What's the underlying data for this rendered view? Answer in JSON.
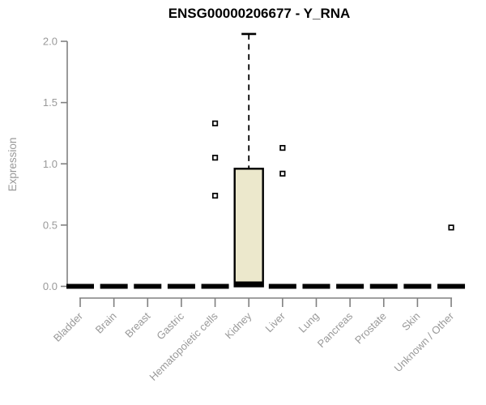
{
  "chart_data": {
    "type": "box",
    "title": "ENSG00000206677 - Y_RNA",
    "xlabel": "",
    "ylabel": "Expression",
    "ylim": [
      0,
      2.1
    ],
    "yticks": [
      0.0,
      0.5,
      1.0,
      1.5,
      2.0
    ],
    "ytick_labels": [
      "0.0",
      "0.5",
      "1.0",
      "1.5",
      "2.0"
    ],
    "grid": "off",
    "legend": "none",
    "categories": [
      "Bladder",
      "Brain",
      "Breast",
      "Gastric",
      "Hematopoietic cells",
      "Kidney",
      "Liver",
      "Lung",
      "Pancreas",
      "Prostate",
      "Skin",
      "Unknown / Other"
    ],
    "boxes": [
      {
        "category": "Bladder",
        "q1": 0,
        "median": 0,
        "q3": 0,
        "whisker_low": 0,
        "whisker_high": 0,
        "outliers": []
      },
      {
        "category": "Brain",
        "q1": 0,
        "median": 0,
        "q3": 0,
        "whisker_low": 0,
        "whisker_high": 0,
        "outliers": []
      },
      {
        "category": "Breast",
        "q1": 0,
        "median": 0,
        "q3": 0,
        "whisker_low": 0,
        "whisker_high": 0,
        "outliers": []
      },
      {
        "category": "Gastric",
        "q1": 0,
        "median": 0,
        "q3": 0,
        "whisker_low": 0,
        "whisker_high": 0,
        "outliers": []
      },
      {
        "category": "Hematopoietic cells",
        "q1": 0,
        "median": 0,
        "q3": 0,
        "whisker_low": 0,
        "whisker_high": 0,
        "outliers": [
          0.74,
          1.05,
          1.33
        ]
      },
      {
        "category": "Kidney",
        "q1": 0,
        "median": 0.02,
        "q3": 0.96,
        "whisker_low": 0,
        "whisker_high": 2.06,
        "outliers": []
      },
      {
        "category": "Liver",
        "q1": 0,
        "median": 0,
        "q3": 0,
        "whisker_low": 0,
        "whisker_high": 0,
        "outliers": [
          0.92,
          1.13
        ]
      },
      {
        "category": "Lung",
        "q1": 0,
        "median": 0,
        "q3": 0,
        "whisker_low": 0,
        "whisker_high": 0,
        "outliers": []
      },
      {
        "category": "Pancreas",
        "q1": 0,
        "median": 0,
        "q3": 0,
        "whisker_low": 0,
        "whisker_high": 0,
        "outliers": []
      },
      {
        "category": "Prostate",
        "q1": 0,
        "median": 0,
        "q3": 0,
        "whisker_low": 0,
        "whisker_high": 0,
        "outliers": []
      },
      {
        "category": "Skin",
        "q1": 0,
        "median": 0,
        "q3": 0,
        "whisker_low": 0,
        "whisker_high": 0,
        "outliers": []
      },
      {
        "category": "Unknown / Other",
        "q1": 0,
        "median": 0,
        "q3": 0,
        "whisker_low": 0,
        "whisker_high": 0,
        "outliers": [
          0.48
        ]
      }
    ],
    "colors": {
      "box_fill": "#ECE8CC",
      "box_border": "#000000",
      "median": "#000000",
      "whisker": "#000000",
      "outlier": "#000000",
      "axis": "#808080",
      "tick_label": "#999999",
      "title": "#000000",
      "background": "#FFFFFF"
    }
  }
}
